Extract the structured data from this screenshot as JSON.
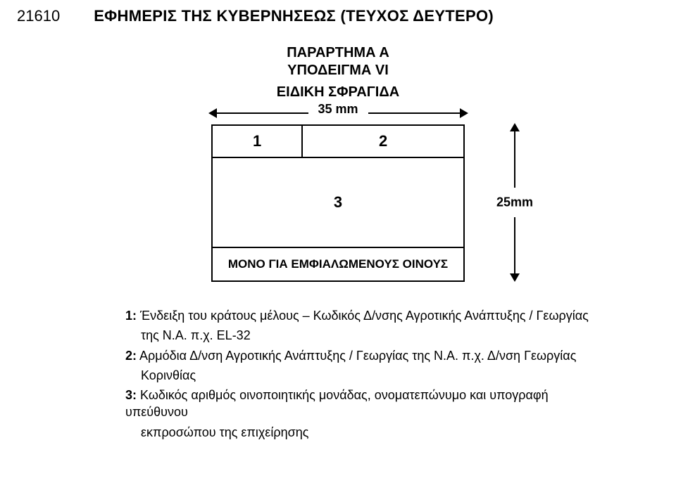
{
  "header": {
    "page_number": "21610",
    "gazette_title": "ΕΦΗΜΕΡΙΣ ΤΗΣ ΚΥΒΕΡΝΗΣΕΩΣ (ΤΕΥΧΟΣ ΔΕΥΤΕΡΟ)"
  },
  "titles": {
    "annex": "ΠΑΡΑΡΤΗΜΑ Α",
    "sample": "ΥΠΟΔΕΙΓΜΑ VI",
    "stamp": "ΕΙΔΙΚΗ ΣΦΡΑΓΙΔΑ"
  },
  "dimensions": {
    "width_label": "35 mm",
    "height_label": "25mm"
  },
  "stamp_cells": {
    "cell1": "1",
    "cell2": "2",
    "cell3": "3",
    "footer": "ΜΟΝΟ ΓΙΑ ΕΜΦΙΑΛΩΜΕΝΟΥΣ ΟΙΝΟΥΣ"
  },
  "legend": {
    "l1_lead": "1:",
    "l1_text": "Ένδειξη του κράτους μέλους – Κωδικός Δ/νσης Αγροτικής Ανάπτυξης / Γεωργίας",
    "l1_text2": "της Ν.Α. π.χ. EL-32",
    "l2_lead": "2:",
    "l2_text": "Αρμόδια Δ/νση Αγροτικής Ανάπτυξης / Γεωργίας της Ν.Α. π.χ. Δ/νση Γεωργίας",
    "l2_text2": "Κορινθίας",
    "l3_lead": "3:",
    "l3_text": "Κωδικός αριθμός οινοποιητικής μονάδας, ονοματεπώνυμο και υπογραφή υπεύθυνου",
    "l3_text2": "εκπροσώπου της επιχείρησης"
  }
}
